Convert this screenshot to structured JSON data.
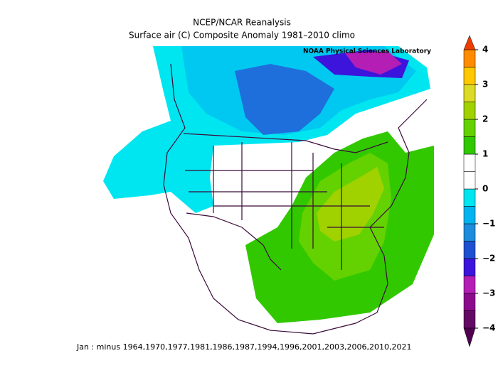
{
  "header": {
    "title": "NCEP/NCAR Reanalysis",
    "subtitle": "Surface air (C) Composite Anomaly 1981–2010 climo",
    "credit": "NOAA Physical Sciences Laboratory"
  },
  "colorbar": {
    "lim": [
      -4,
      4
    ],
    "ticks": [
      {
        "value": -4,
        "label": "−4"
      },
      {
        "value": -3,
        "label": "−3"
      },
      {
        "value": -2,
        "label": "−2"
      },
      {
        "value": -1,
        "label": "−1"
      },
      0,
      1,
      2,
      3,
      4
    ],
    "colors": [
      "#640a64",
      "#8c0a8c",
      "#b41eb4",
      "#3c14dc",
      "#1e50d2",
      "#1e8cdc",
      "#00b4f0",
      "#00e6f0",
      "#ffffff",
      "#ffffff",
      "#32c800",
      "#64d200",
      "#a0d200",
      "#dcdc28",
      "#ffc800",
      "#ff8c00"
    ],
    "under_color": "#500050",
    "over_color": "#f03c00"
  },
  "footer": "Jan :  minus 1964,1970,1977,1981,1986,1987,1994,1996,2001,2003,2006,2010,2021"
}
